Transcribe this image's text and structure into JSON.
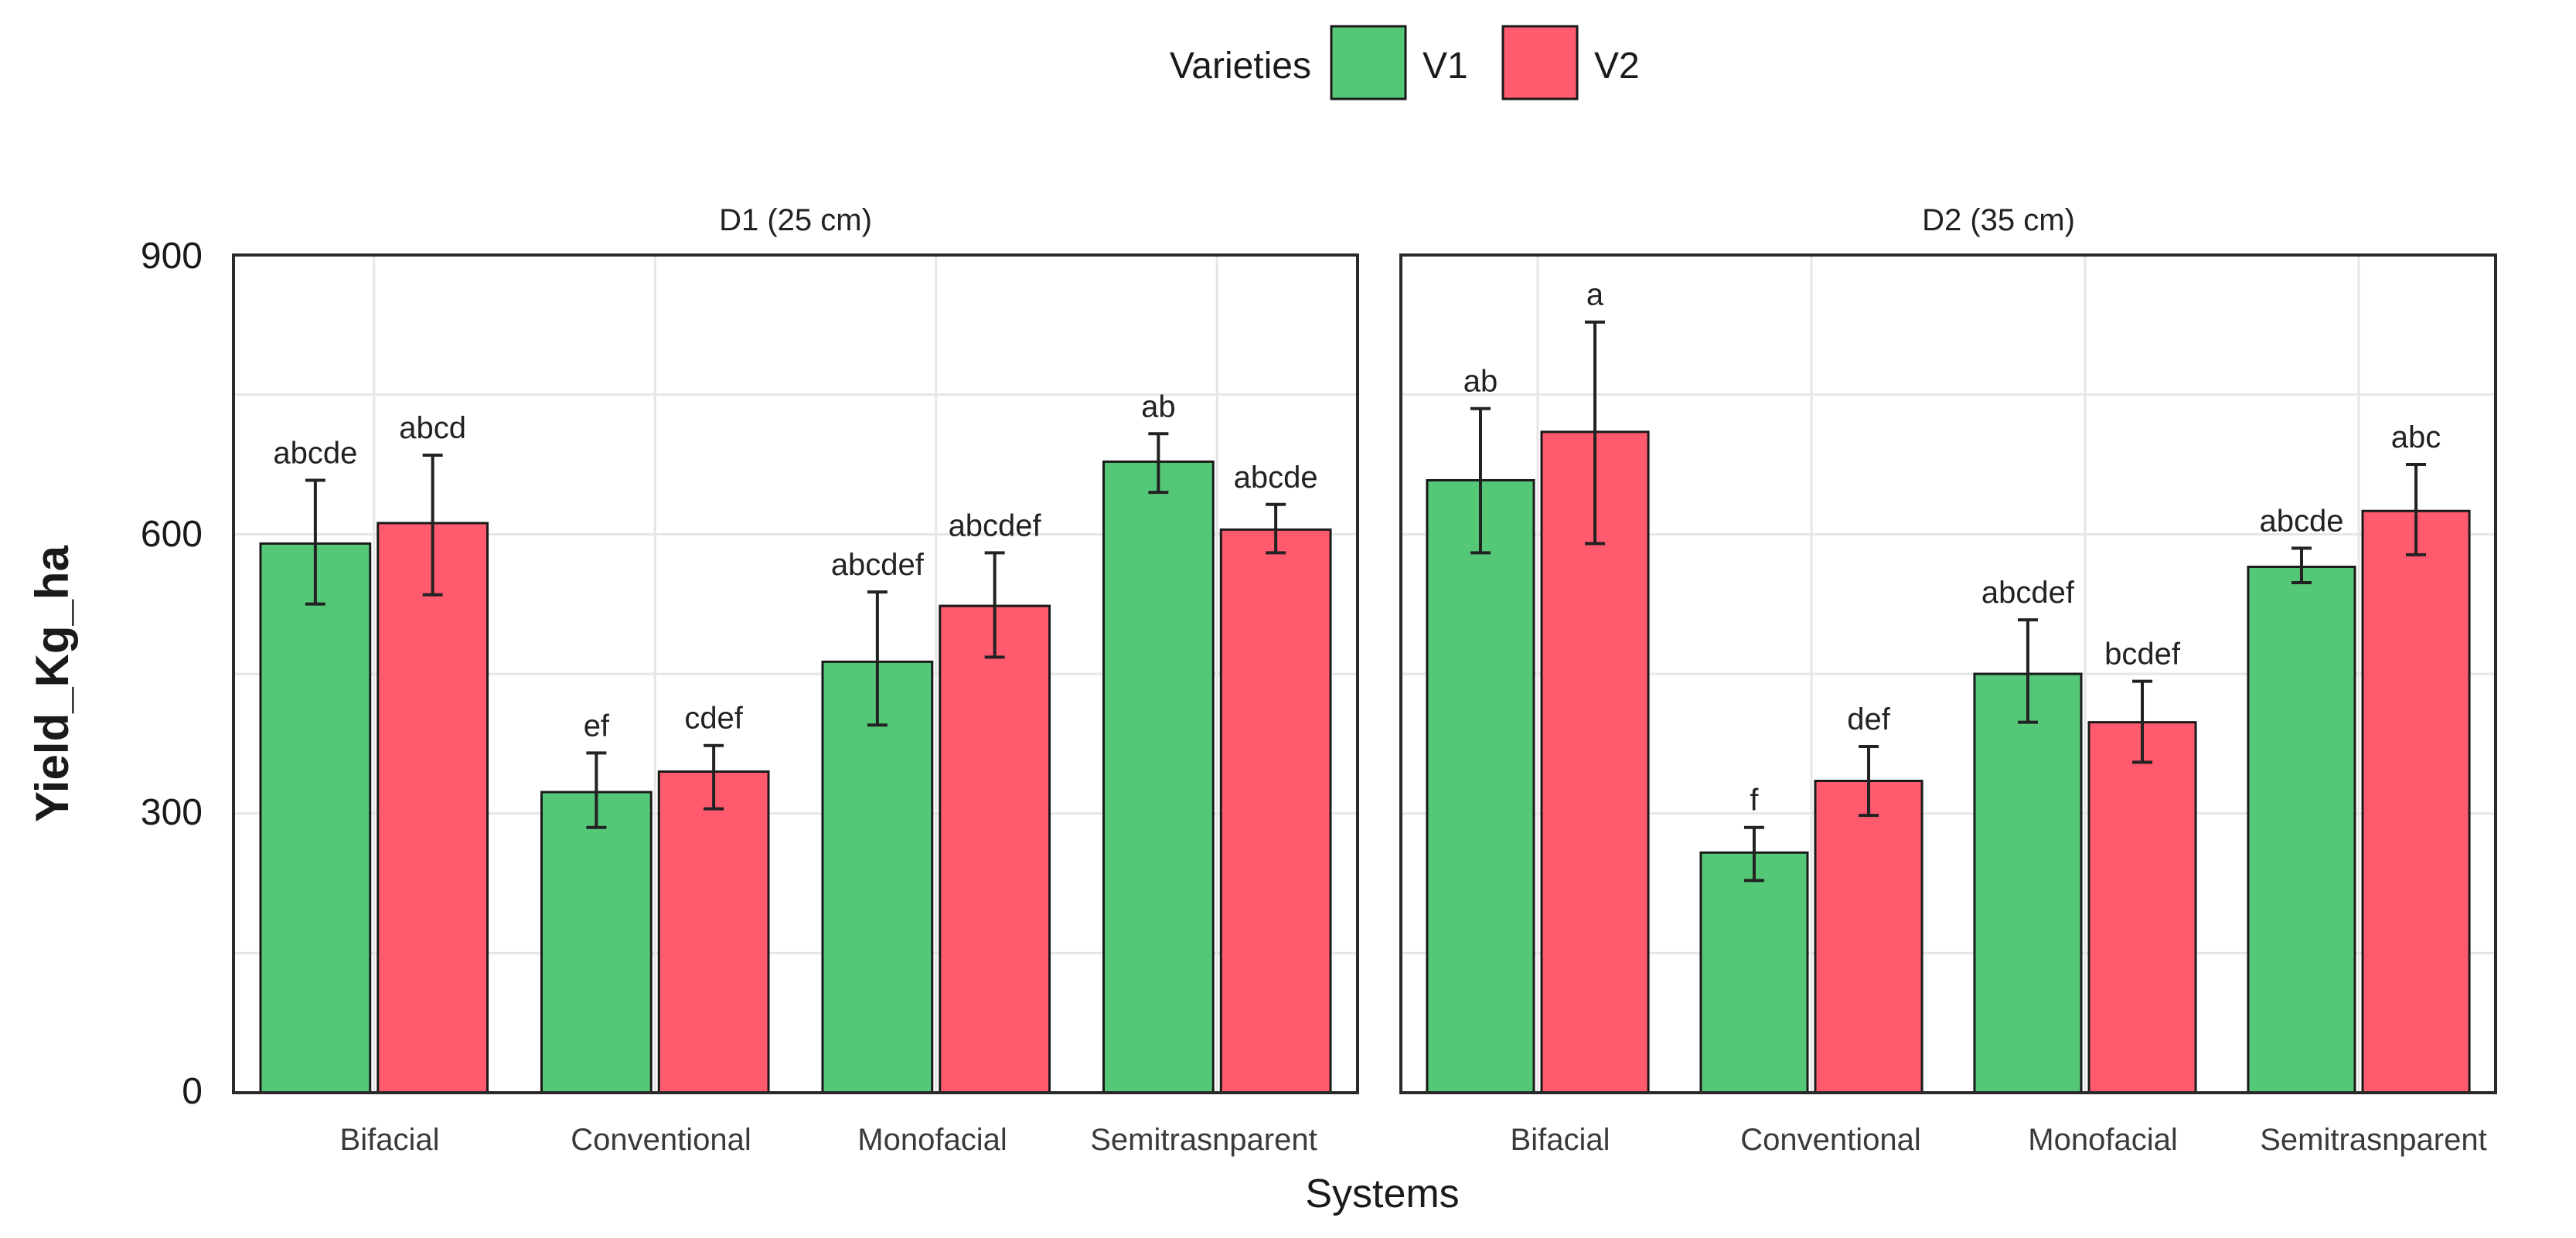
{
  "colors": {
    "V1": "#55c878",
    "V2": "#ff5a6e"
  },
  "chart_data": {
    "type": "bar",
    "title": "",
    "xlabel": "Systems",
    "ylabel": "Yield_Kg_ha",
    "ylim": [
      0,
      900
    ],
    "yticks": [
      "0",
      "300",
      "600",
      "900"
    ],
    "legend": {
      "title": "Varieties",
      "entries": [
        "V1",
        "V2"
      ],
      "position": "top"
    },
    "categories": [
      "Bifacial",
      "Conventional",
      "Monofacial",
      "Semitrasnparent"
    ],
    "panels": [
      {
        "label": "D1 (25 cm)",
        "series": [
          {
            "name": "V1",
            "values": [
              590,
              323,
              463,
              678
            ],
            "err_low": [
              525,
              285,
              395,
              645
            ],
            "err_high": [
              658,
              365,
              538,
              708
            ],
            "letters": [
              "abcde",
              "ef",
              "abcdef",
              "ab"
            ]
          },
          {
            "name": "V2",
            "values": [
              612,
              345,
              523,
              605
            ],
            "err_low": [
              535,
              305,
              468,
              580
            ],
            "err_high": [
              685,
              373,
              580,
              632
            ],
            "letters": [
              "abcd",
              "cdef",
              "abcdef",
              "abcde"
            ]
          }
        ]
      },
      {
        "label": "D2 (35 cm)",
        "series": [
          {
            "name": "V1",
            "values": [
              658,
              258,
              450,
              565
            ],
            "err_low": [
              580,
              228,
              398,
              548
            ],
            "err_high": [
              735,
              285,
              508,
              585
            ],
            "letters": [
              "ab",
              "f",
              "abcdef",
              "abcde"
            ]
          },
          {
            "name": "V2",
            "values": [
              710,
              335,
              398,
              625
            ],
            "err_low": [
              590,
              298,
              355,
              578
            ],
            "err_high": [
              828,
              372,
              442,
              675
            ],
            "letters": [
              "a",
              "def",
              "bcdef",
              "abc"
            ]
          }
        ]
      }
    ]
  }
}
